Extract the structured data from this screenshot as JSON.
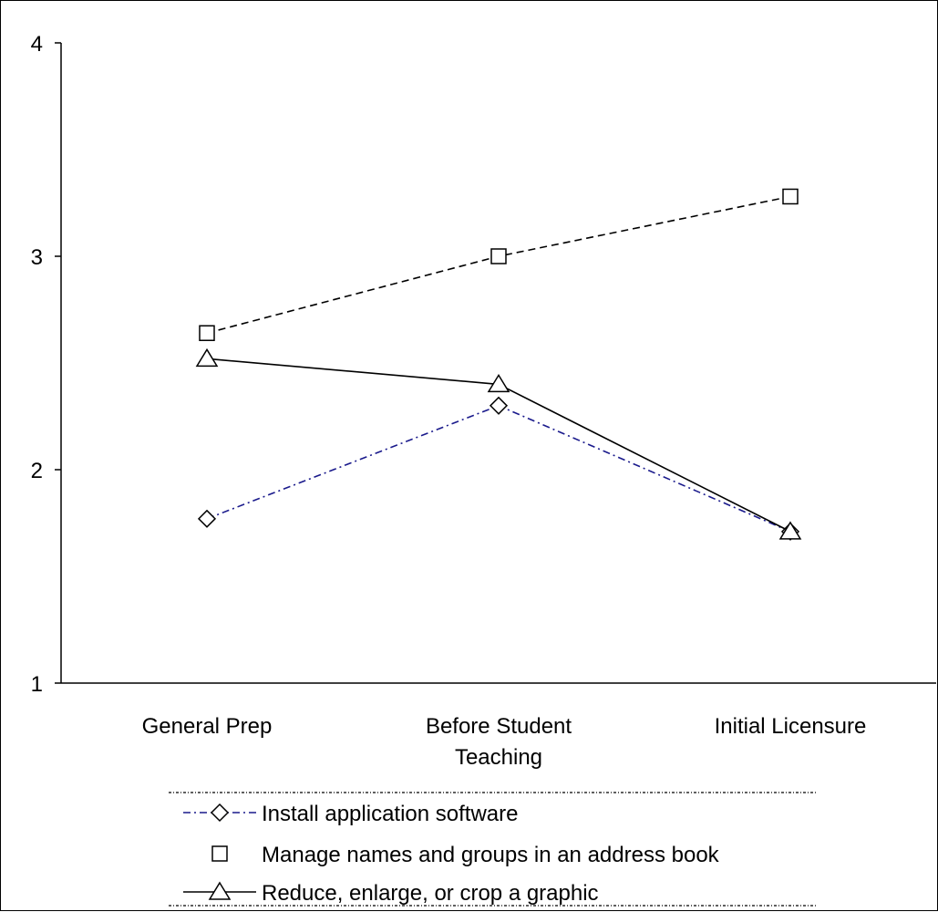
{
  "chart_data": {
    "type": "line",
    "categories": [
      [
        "General Prep"
      ],
      [
        "Before Student",
        "Teaching"
      ],
      [
        "Initial Licensure"
      ]
    ],
    "ylim": [
      1,
      4
    ],
    "yticks": [
      "1",
      "2",
      "3",
      "4"
    ],
    "grid": false,
    "legend_placement": "bottom",
    "series": [
      {
        "name": "Install application software",
        "values": [
          1.77,
          2.3,
          1.71
        ],
        "marker": "diamond",
        "line_style": "dash-dot",
        "color": "#1a1a8c",
        "show_line_in_legend": true
      },
      {
        "name": "Manage names and groups in an address book",
        "values": [
          2.64,
          3.0,
          3.28
        ],
        "marker": "square",
        "line_style": "dashed",
        "color": "#000000",
        "show_line_in_legend": false
      },
      {
        "name": "Reduce, enlarge, or crop a graphic",
        "values": [
          2.52,
          2.4,
          1.71
        ],
        "marker": "triangle",
        "line_style": "solid",
        "color": "#000000",
        "show_line_in_legend": true
      }
    ]
  }
}
